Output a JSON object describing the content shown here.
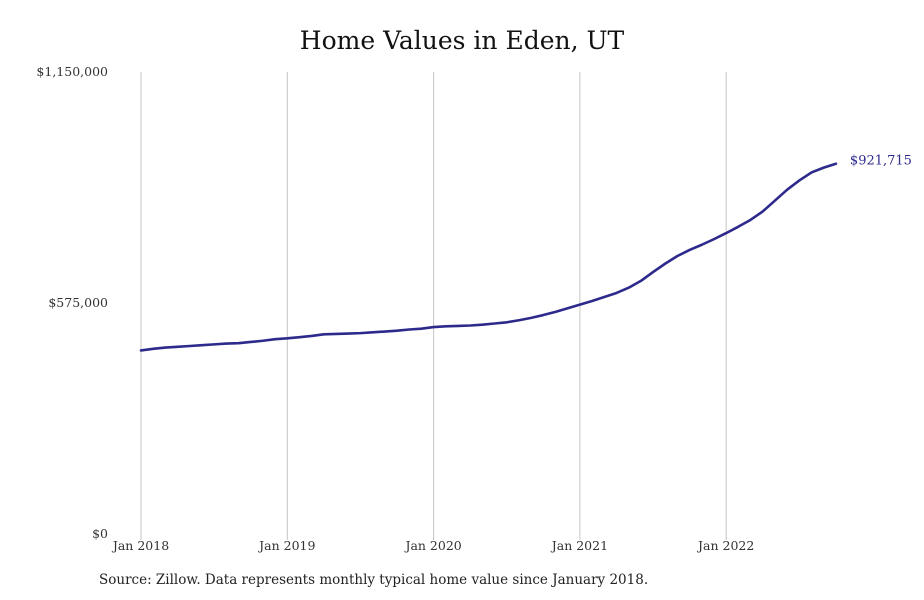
{
  "chart_data": {
    "type": "line",
    "title": "Home Values in Eden, UT",
    "xlabel": "",
    "ylabel": "",
    "ylim": [
      0,
      1150000
    ],
    "y_ticks": [
      {
        "value": 0,
        "label": "$0"
      },
      {
        "value": 575000,
        "label": "$575,000"
      },
      {
        "value": 1150000,
        "label": "$1,150,000"
      }
    ],
    "x_ticks": [
      {
        "value": "2018-01",
        "label": "Jan 2018"
      },
      {
        "value": "2019-01",
        "label": "Jan 2019"
      },
      {
        "value": "2020-01",
        "label": "Jan 2020"
      },
      {
        "value": "2021-01",
        "label": "Jan 2021"
      },
      {
        "value": "2022-01",
        "label": "Jan 2022"
      }
    ],
    "grid": "vertical",
    "line_color": "#2d2a8c",
    "series": [
      {
        "end_label": "$921,715",
        "points": [
          [
            "2018-01",
            457000
          ],
          [
            "2018-02",
            461000
          ],
          [
            "2018-03",
            464000
          ],
          [
            "2018-04",
            466000
          ],
          [
            "2018-05",
            468000
          ],
          [
            "2018-06",
            470000
          ],
          [
            "2018-07",
            472000
          ],
          [
            "2018-08",
            474000
          ],
          [
            "2018-09",
            475000
          ],
          [
            "2018-10",
            478000
          ],
          [
            "2018-11",
            481000
          ],
          [
            "2018-12",
            485000
          ],
          [
            "2019-01",
            487000
          ],
          [
            "2019-02",
            490000
          ],
          [
            "2019-03",
            493000
          ],
          [
            "2019-04",
            497000
          ],
          [
            "2019-05",
            498000
          ],
          [
            "2019-06",
            499000
          ],
          [
            "2019-07",
            500000
          ],
          [
            "2019-08",
            502000
          ],
          [
            "2019-09",
            504000
          ],
          [
            "2019-10",
            506000
          ],
          [
            "2019-11",
            509000
          ],
          [
            "2019-12",
            511000
          ],
          [
            "2020-01",
            515000
          ],
          [
            "2020-02",
            517000
          ],
          [
            "2020-03",
            518000
          ],
          [
            "2020-04",
            519000
          ],
          [
            "2020-05",
            521000
          ],
          [
            "2020-06",
            524000
          ],
          [
            "2020-07",
            527000
          ],
          [
            "2020-08",
            532000
          ],
          [
            "2020-09",
            538000
          ],
          [
            "2020-10",
            545000
          ],
          [
            "2020-11",
            553000
          ],
          [
            "2020-12",
            562000
          ],
          [
            "2021-01",
            571000
          ],
          [
            "2021-02",
            580000
          ],
          [
            "2021-03",
            590000
          ],
          [
            "2021-04",
            600000
          ],
          [
            "2021-05",
            613000
          ],
          [
            "2021-06",
            630000
          ],
          [
            "2021-07",
            652000
          ],
          [
            "2021-08",
            673000
          ],
          [
            "2021-09",
            692000
          ],
          [
            "2021-10",
            707000
          ],
          [
            "2021-11",
            720000
          ],
          [
            "2021-12",
            734000
          ],
          [
            "2022-01",
            749000
          ],
          [
            "2022-02",
            765000
          ],
          [
            "2022-03",
            782000
          ],
          [
            "2022-04",
            803000
          ],
          [
            "2022-05",
            830000
          ],
          [
            "2022-06",
            857000
          ],
          [
            "2022-07",
            880000
          ],
          [
            "2022-08",
            900000
          ],
          [
            "2022-09",
            912000
          ],
          [
            "2022-10",
            921715
          ]
        ]
      }
    ]
  },
  "source_note": "Source: Zillow. Data represents monthly typical home value since January 2018."
}
